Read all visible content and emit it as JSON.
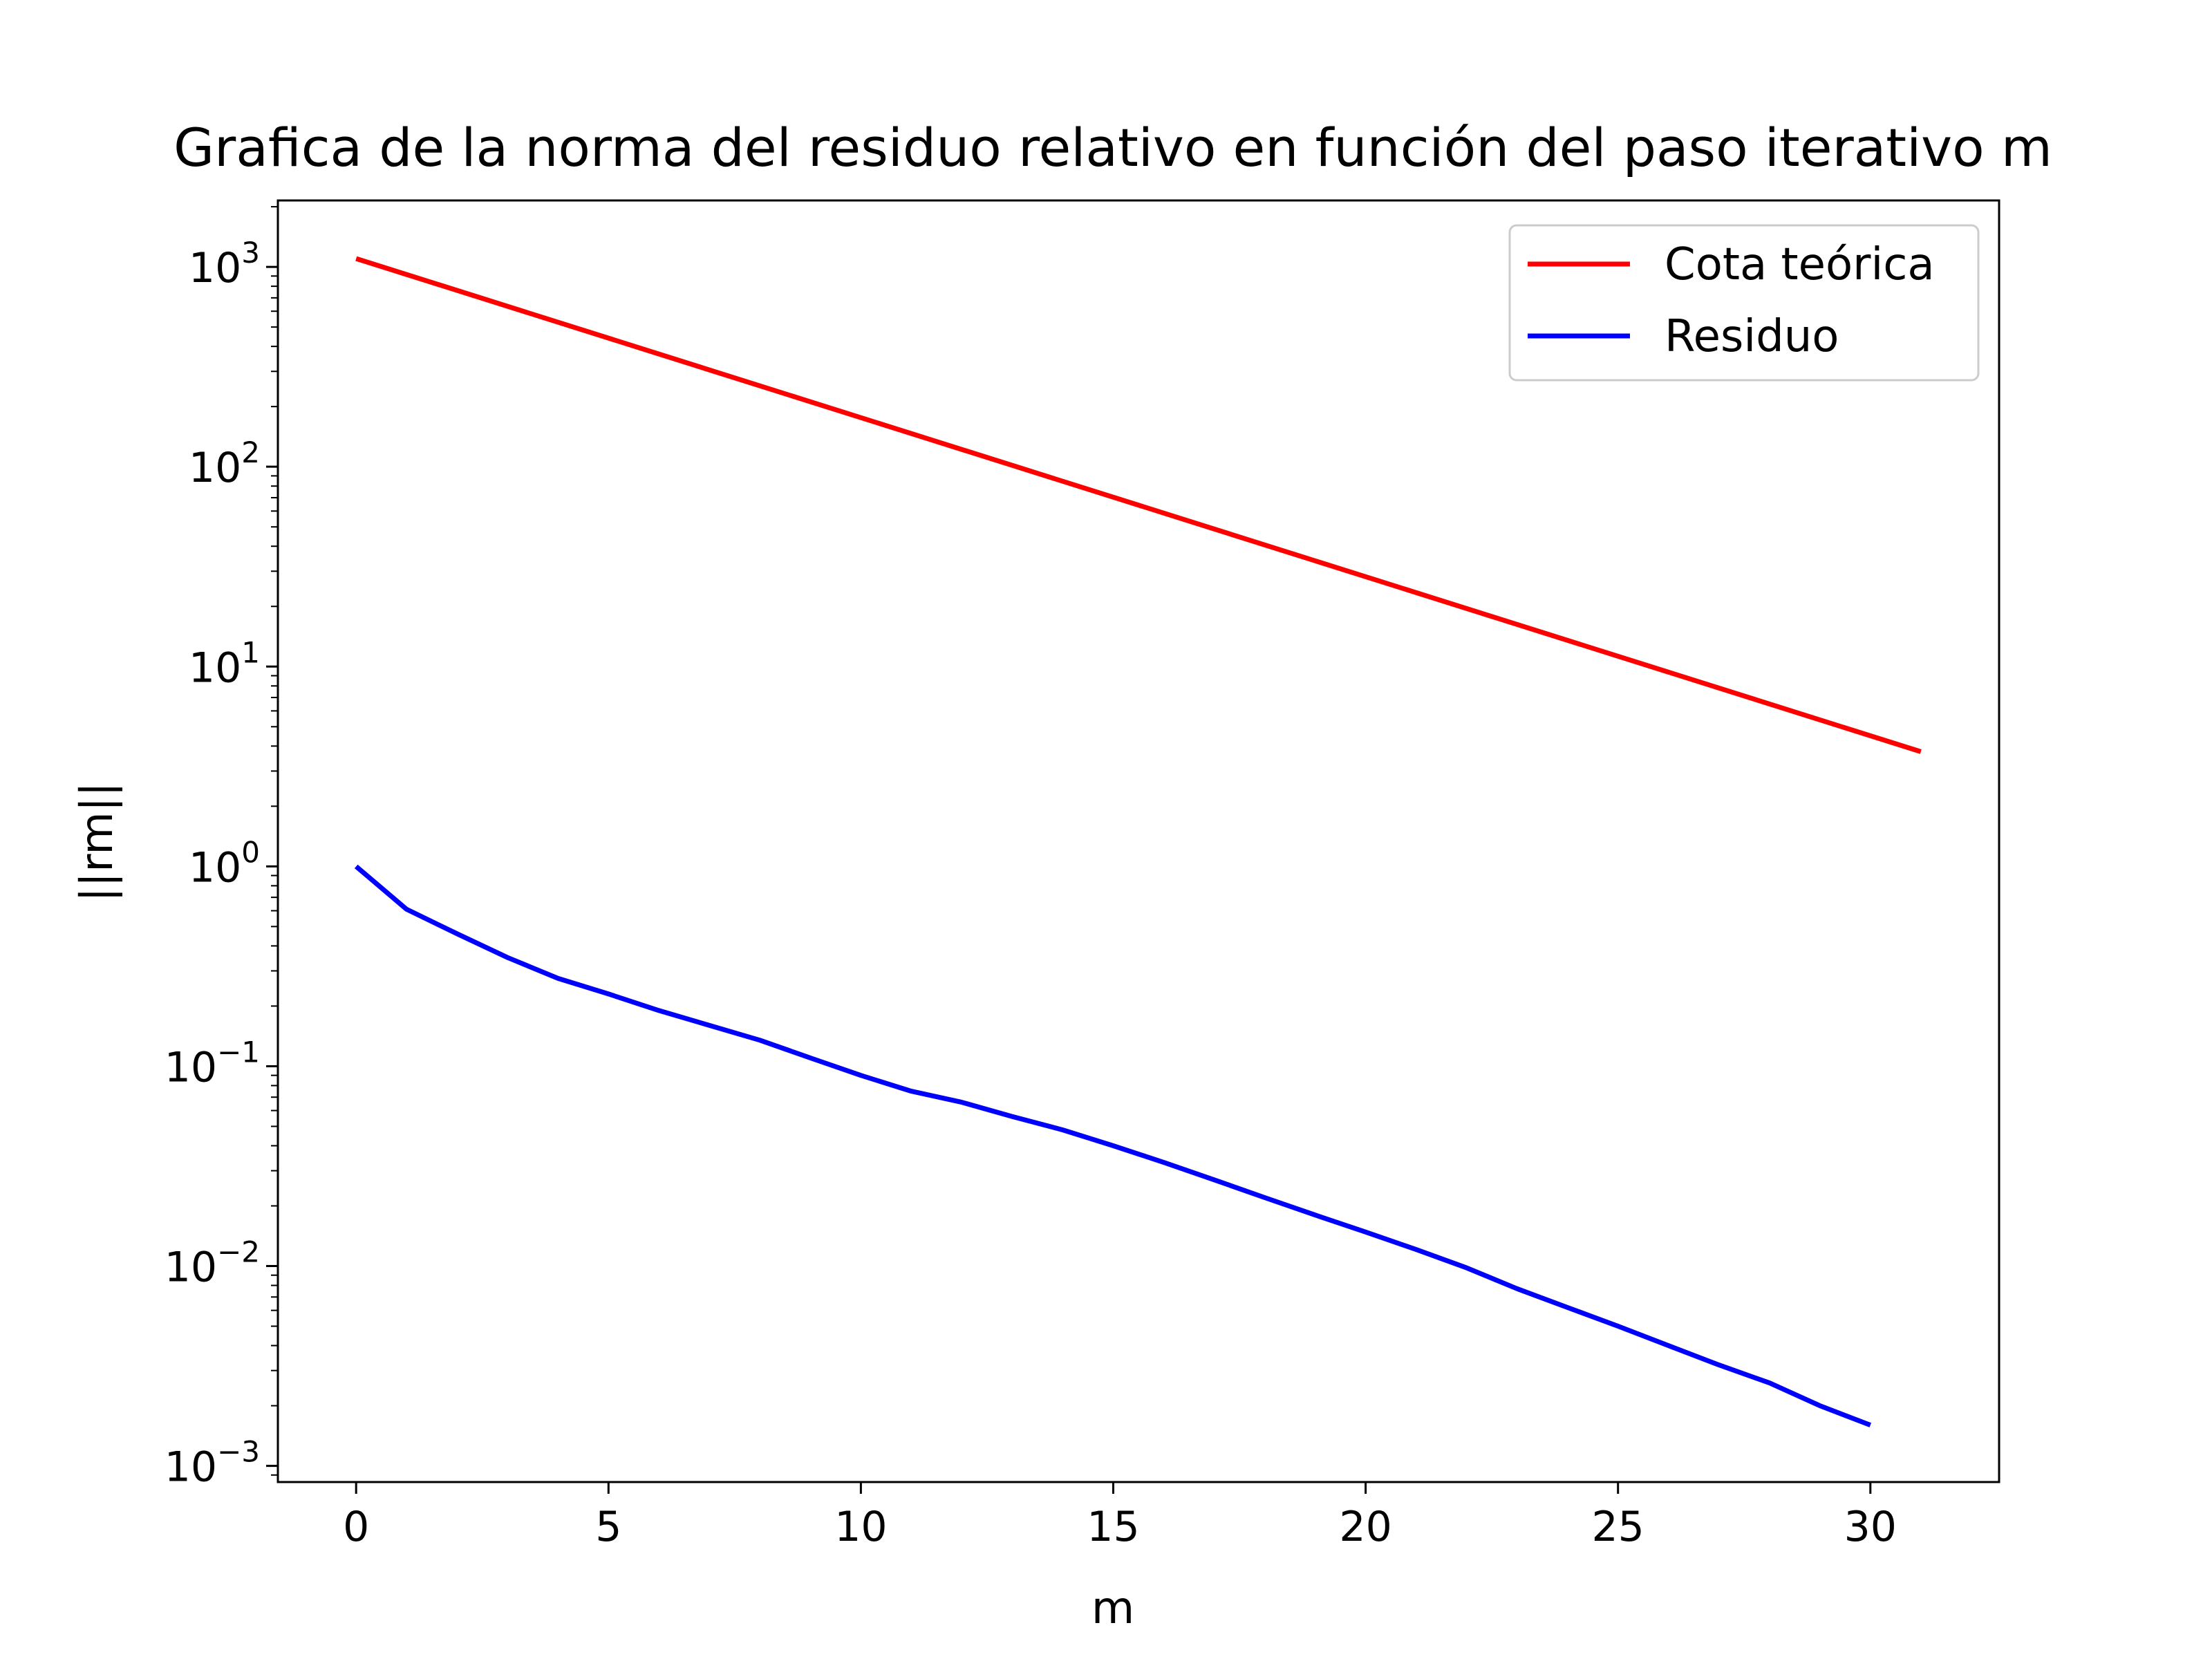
{
  "chart_data": {
    "type": "line",
    "title": "Grafica de la norma del residuo relativo en función del paso iterativo m",
    "xlabel": "m",
    "ylabel": "||rm||",
    "yscale": "log",
    "xlim": [
      -1.55,
      32.55
    ],
    "ylim": [
      0.00083,
      2150
    ],
    "xticks": [
      0,
      5,
      10,
      15,
      20,
      25,
      30
    ],
    "xtick_labels": [
      "0",
      "5",
      "10",
      "15",
      "20",
      "25",
      "30"
    ],
    "yticks": [
      0.001,
      0.01,
      0.1,
      1,
      10,
      100,
      1000
    ],
    "ytick_labels": [
      {
        "base": "10",
        "exp": "−3"
      },
      {
        "base": "10",
        "exp": "−2"
      },
      {
        "base": "10",
        "exp": "−1"
      },
      {
        "base": "10",
        "exp": "0"
      },
      {
        "base": "10",
        "exp": "1"
      },
      {
        "base": "10",
        "exp": "2"
      },
      {
        "base": "10",
        "exp": "3"
      }
    ],
    "grid": false,
    "legend_position": "top-right",
    "series": [
      {
        "name": "Cota teórica",
        "color": "#ff0000",
        "x": [
          0,
          31
        ],
        "y": [
          1100,
          3.75
        ]
      },
      {
        "name": "Residuo",
        "color": "#0000ff",
        "x": [
          0,
          1,
          2,
          3,
          4,
          5,
          6,
          7,
          8,
          9,
          10,
          11,
          12,
          13,
          14,
          15,
          16,
          17,
          18,
          19,
          20,
          21,
          22,
          23,
          24,
          25,
          26,
          27,
          28,
          29,
          30
        ],
        "y": [
          1.0,
          0.61,
          0.46,
          0.35,
          0.275,
          0.23,
          0.19,
          0.16,
          0.135,
          0.11,
          0.09,
          0.075,
          0.066,
          0.056,
          0.048,
          0.04,
          0.033,
          0.027,
          0.022,
          0.018,
          0.0148,
          0.0121,
          0.0098,
          0.0077,
          0.0062,
          0.005,
          0.004,
          0.0032,
          0.0026,
          0.002,
          0.0016
        ]
      }
    ]
  }
}
